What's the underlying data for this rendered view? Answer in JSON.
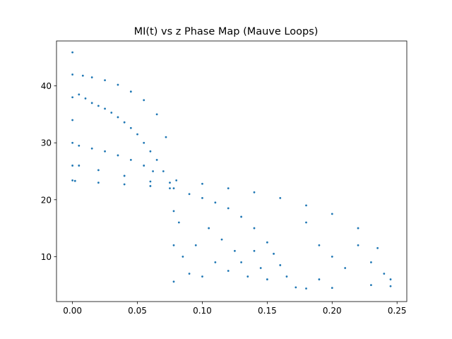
{
  "chart_data": {
    "type": "scatter",
    "title": "MI(t) vs z Phase Map (Mauve Loops)",
    "xlabel": "",
    "ylabel": "",
    "xlim": [
      -0.0123,
      0.2575
    ],
    "ylim": [
      2.1,
      47.9
    ],
    "x_ticks": [
      0.0,
      0.05,
      0.1,
      0.15,
      0.2,
      0.25
    ],
    "x_tick_labels": [
      "0.00",
      "0.05",
      "0.10",
      "0.15",
      "0.20",
      "0.25"
    ],
    "y_ticks": [
      10,
      20,
      30,
      40
    ],
    "y_tick_labels": [
      "10",
      "20",
      "30",
      "40"
    ],
    "grid": false,
    "marker_color": "#1f77b4",
    "marker_size": 1.4,
    "series": [
      {
        "points": [
          [
            0.0,
            45.9
          ],
          [
            0.0,
            42.0
          ],
          [
            0.0,
            38.0
          ],
          [
            0.0,
            34.0
          ],
          [
            0.0,
            30.0
          ],
          [
            0.0,
            26.0
          ],
          [
            0.0,
            23.4
          ],
          [
            0.005,
            38.5
          ],
          [
            0.01,
            37.8
          ],
          [
            0.015,
            37.0
          ],
          [
            0.02,
            36.5
          ],
          [
            0.025,
            36.0
          ],
          [
            0.03,
            35.3
          ],
          [
            0.035,
            34.5
          ],
          [
            0.04,
            33.6
          ],
          [
            0.045,
            32.6
          ],
          [
            0.05,
            31.5
          ],
          [
            0.055,
            30.0
          ],
          [
            0.06,
            28.5
          ],
          [
            0.065,
            27.0
          ],
          [
            0.07,
            25.0
          ],
          [
            0.075,
            23.0
          ],
          [
            0.078,
            22.0
          ],
          [
            0.008,
            41.8
          ],
          [
            0.015,
            41.5
          ],
          [
            0.025,
            41.0
          ],
          [
            0.035,
            40.2
          ],
          [
            0.045,
            39.0
          ],
          [
            0.055,
            37.5
          ],
          [
            0.065,
            35.0
          ],
          [
            0.072,
            31.0
          ],
          [
            0.005,
            29.5
          ],
          [
            0.015,
            29.0
          ],
          [
            0.025,
            28.5
          ],
          [
            0.035,
            27.8
          ],
          [
            0.045,
            27.0
          ],
          [
            0.055,
            26.0
          ],
          [
            0.062,
            25.0
          ],
          [
            0.005,
            26.0
          ],
          [
            0.02,
            25.2
          ],
          [
            0.04,
            24.2
          ],
          [
            0.06,
            23.2
          ],
          [
            0.002,
            23.3
          ],
          [
            0.02,
            23.0
          ],
          [
            0.04,
            22.7
          ],
          [
            0.06,
            22.4
          ],
          [
            0.075,
            22.0
          ],
          [
            0.078,
            18.0
          ],
          [
            0.078,
            12.0
          ],
          [
            0.078,
            5.6
          ],
          [
            0.08,
            23.4
          ],
          [
            0.1,
            22.8
          ],
          [
            0.12,
            22.0
          ],
          [
            0.14,
            21.3
          ],
          [
            0.16,
            20.3
          ],
          [
            0.18,
            19.0
          ],
          [
            0.2,
            17.5
          ],
          [
            0.22,
            15.0
          ],
          [
            0.235,
            11.5
          ],
          [
            0.245,
            6.0
          ],
          [
            0.245,
            4.8
          ],
          [
            0.23,
            5.0
          ],
          [
            0.2,
            4.5
          ],
          [
            0.18,
            4.4
          ],
          [
            0.172,
            4.6
          ],
          [
            0.165,
            6.5
          ],
          [
            0.16,
            8.5
          ],
          [
            0.155,
            10.5
          ],
          [
            0.15,
            12.5
          ],
          [
            0.14,
            15.0
          ],
          [
            0.13,
            17.0
          ],
          [
            0.12,
            18.5
          ],
          [
            0.11,
            19.5
          ],
          [
            0.1,
            20.3
          ],
          [
            0.09,
            21.0
          ],
          [
            0.082,
            16.0
          ],
          [
            0.085,
            10.0
          ],
          [
            0.09,
            7.0
          ],
          [
            0.095,
            12.0
          ],
          [
            0.1,
            6.5
          ],
          [
            0.105,
            15.0
          ],
          [
            0.11,
            9.0
          ],
          [
            0.115,
            13.0
          ],
          [
            0.12,
            7.5
          ],
          [
            0.125,
            11.0
          ],
          [
            0.13,
            9.0
          ],
          [
            0.135,
            6.5
          ],
          [
            0.14,
            11.0
          ],
          [
            0.145,
            8.0
          ],
          [
            0.15,
            6.0
          ],
          [
            0.19,
            12.0
          ],
          [
            0.2,
            10.0
          ],
          [
            0.21,
            8.0
          ],
          [
            0.22,
            12.0
          ],
          [
            0.23,
            9.0
          ],
          [
            0.24,
            7.0
          ],
          [
            0.18,
            16.0
          ],
          [
            0.19,
            6.0
          ]
        ]
      }
    ]
  }
}
